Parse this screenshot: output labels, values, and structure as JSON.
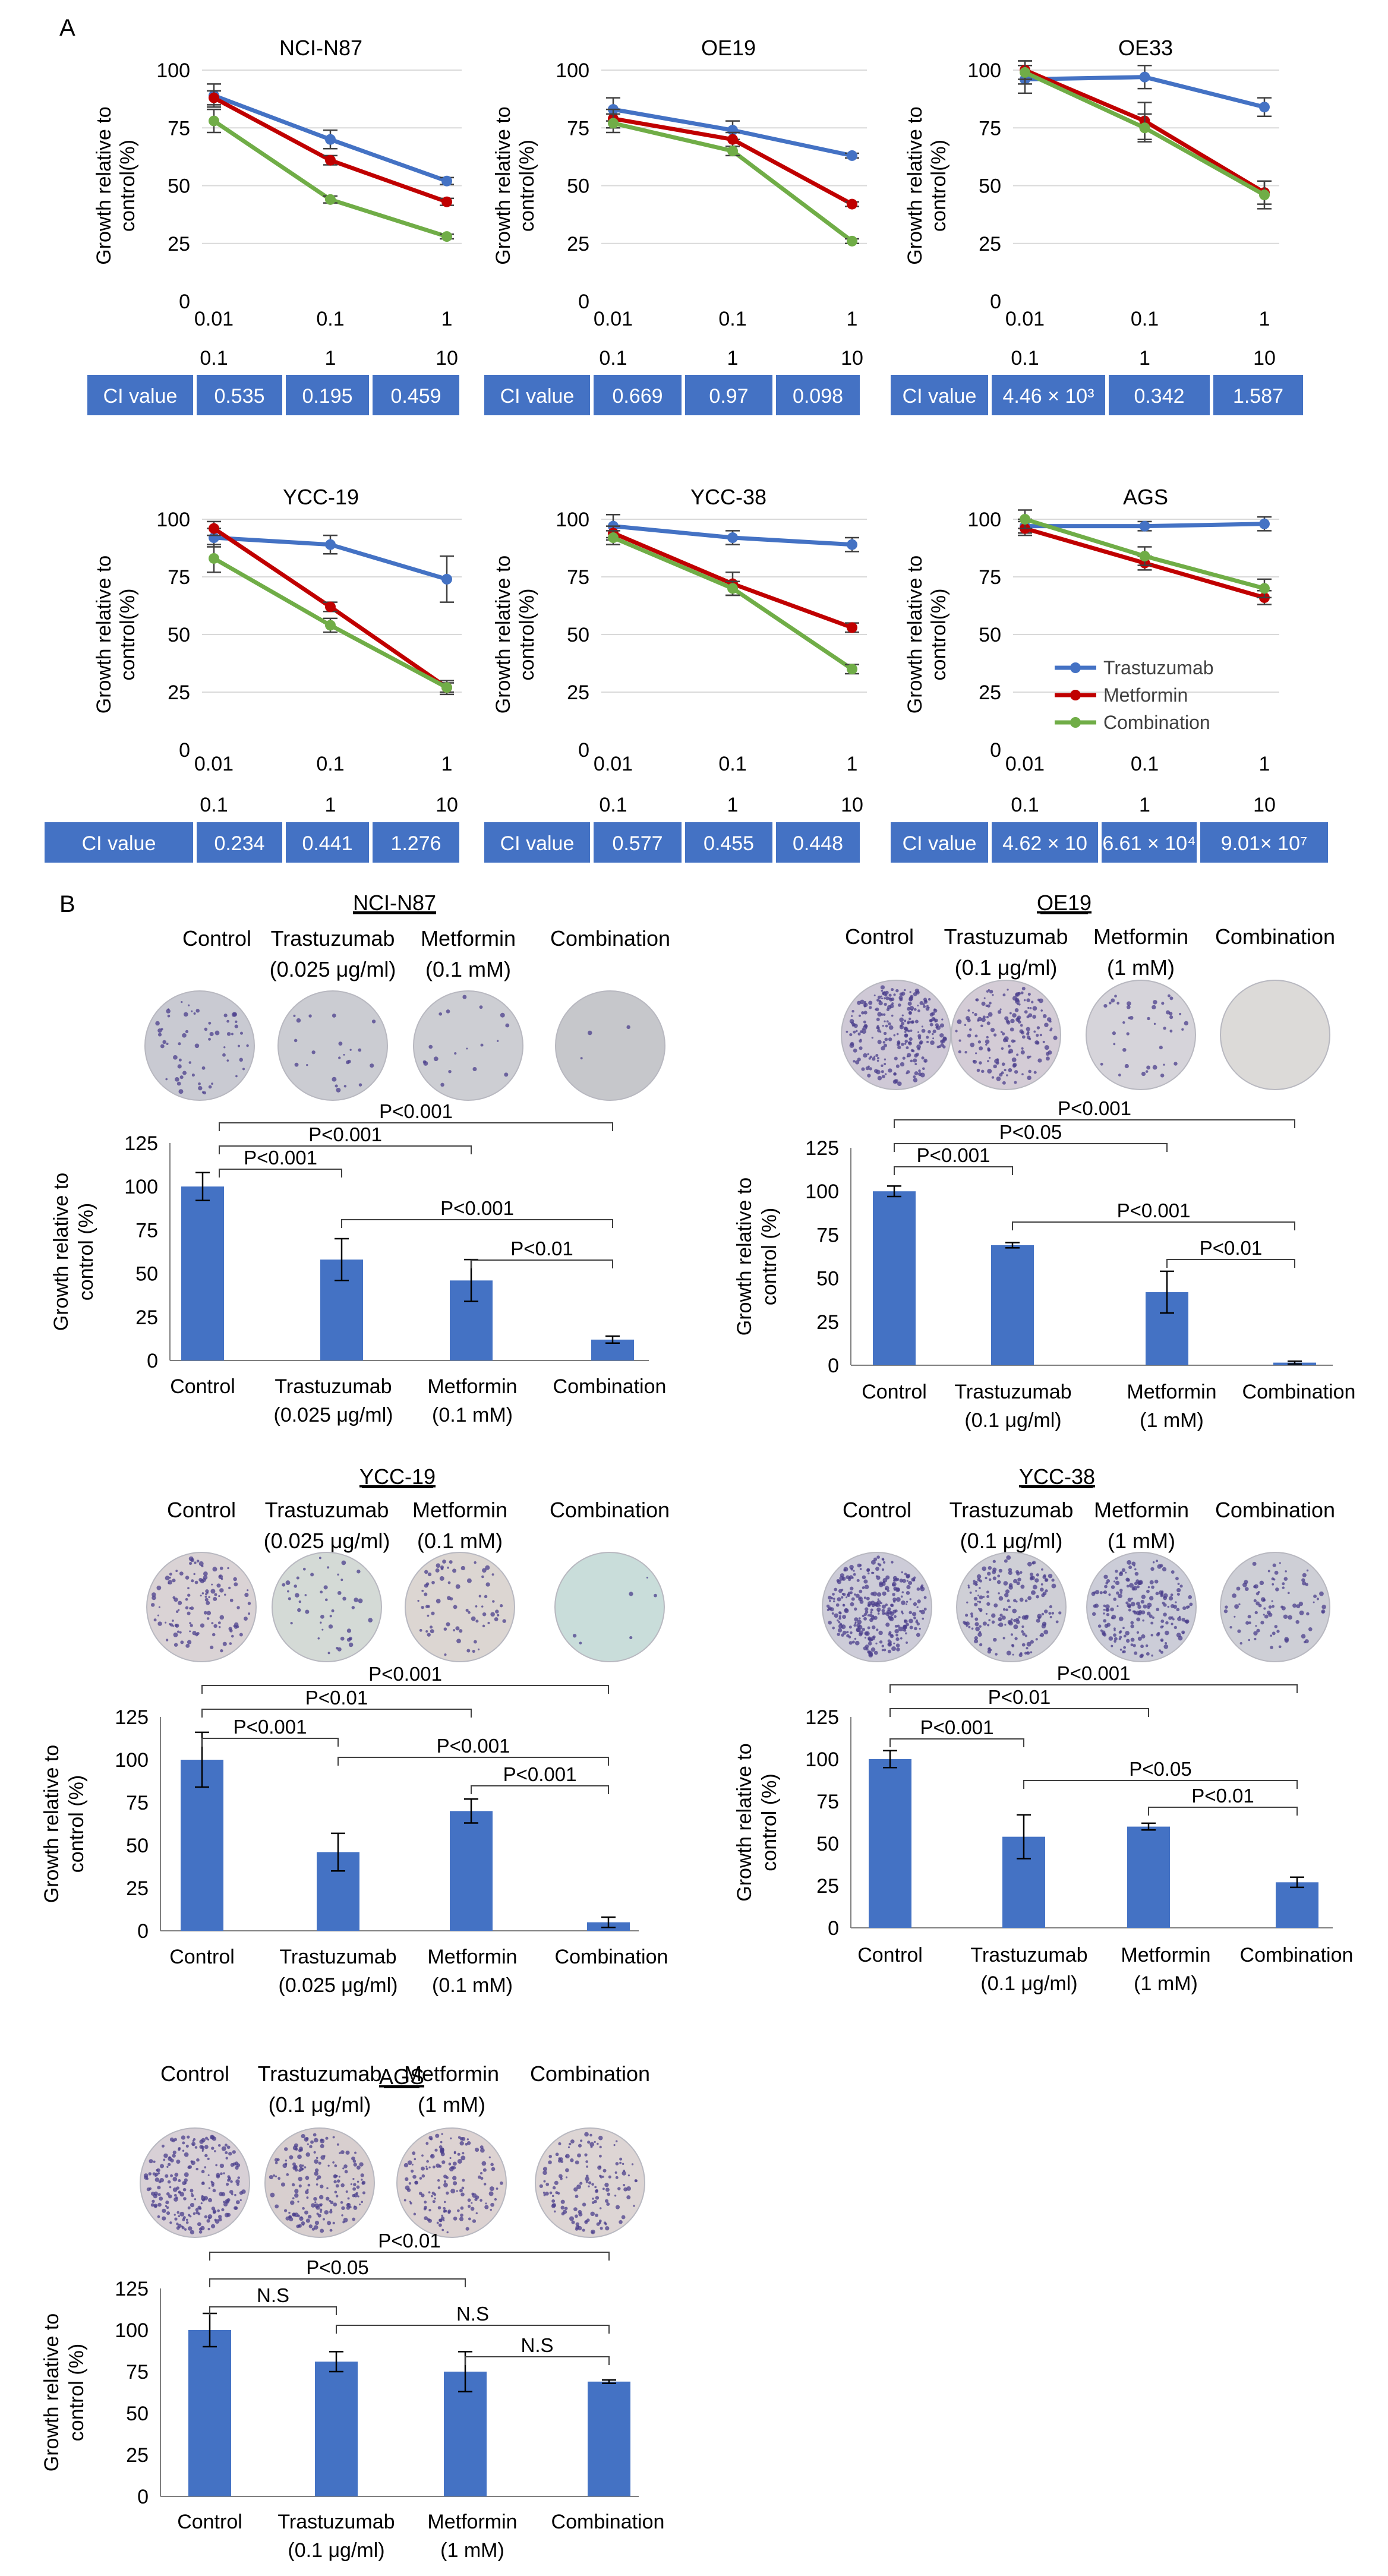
{
  "figure": {
    "panel_a_label": "A",
    "panel_b_label": "B",
    "line_ylabel": [
      "Growth relative to",
      "control(%)"
    ],
    "bar_ylabel": [
      "Growth relative to",
      "control (%)"
    ],
    "x_top": [
      "0.01",
      "0.1",
      "1"
    ],
    "x_bottom": [
      "0.1",
      "1",
      "10"
    ],
    "ci_label": "CI value",
    "series_names": [
      "Trastuzumab",
      "Metformin",
      "Combination"
    ],
    "colors": {
      "trastuzumab": "#4472C4",
      "metformin": "#C00000",
      "combination": "#70AD47",
      "bar": "#4472C4",
      "ci_bg": "#4472C4",
      "grid": "#D9D9D9"
    },
    "colony_top_labels": [
      "Control",
      "Trastuzumab",
      "Metformin",
      "Combination"
    ]
  },
  "chart_data": [
    {
      "type": "line",
      "title": "NCI-N87",
      "ylabel": "Growth relative to control(%)",
      "ylim": [
        0,
        100
      ],
      "categories": [
        "0.01 / 0.1",
        "0.1 / 1",
        "1 / 10"
      ],
      "series": [
        {
          "name": "Trastuzumab",
          "values": [
            89,
            70,
            52
          ],
          "errors": [
            5,
            4,
            1.5
          ]
        },
        {
          "name": "Metformin",
          "values": [
            88,
            61,
            43
          ],
          "errors": [
            3,
            2,
            1.5
          ]
        },
        {
          "name": "Combination",
          "values": [
            78,
            44,
            28
          ],
          "errors": [
            5,
            1.5,
            1
          ]
        }
      ],
      "ci_values": [
        "0.535",
        "0.195",
        "0.459"
      ]
    },
    {
      "type": "line",
      "title": "OE19",
      "ylabel": "Growth relative to control(%)",
      "ylim": [
        0,
        100
      ],
      "categories": [
        "0.01 / 0.1",
        "0.1 / 1",
        "1 / 10"
      ],
      "series": [
        {
          "name": "Trastuzumab",
          "values": [
            83,
            74,
            63
          ],
          "errors": [
            5,
            4,
            1
          ]
        },
        {
          "name": "Metformin",
          "values": [
            79,
            70,
            42
          ],
          "errors": [
            4,
            3,
            1
          ]
        },
        {
          "name": "Combination",
          "values": [
            77,
            65,
            26
          ],
          "errors": [
            4,
            2,
            1
          ]
        }
      ],
      "ci_values": [
        "0.669",
        "0.97",
        "0.098"
      ]
    },
    {
      "type": "line",
      "title": "OE33",
      "ylabel": "Growth relative to control(%)",
      "ylim": [
        0,
        100
      ],
      "categories": [
        "0.01 / 0.1",
        "0.1 / 1",
        "1 / 10"
      ],
      "series": [
        {
          "name": "Trastuzumab",
          "values": [
            96,
            97,
            84
          ],
          "errors": [
            6,
            5,
            4
          ]
        },
        {
          "name": "Metformin",
          "values": [
            100,
            78,
            47
          ],
          "errors": [
            4,
            8,
            5
          ]
        },
        {
          "name": "Combination",
          "values": [
            99,
            75,
            46
          ],
          "errors": [
            5,
            6,
            6
          ]
        }
      ],
      "ci_values": [
        "4.46 × 10³",
        "0.342",
        "1.587"
      ]
    },
    {
      "type": "line",
      "title": "YCC-19",
      "ylabel": "Growth relative to control(%)",
      "ylim": [
        0,
        100
      ],
      "categories": [
        "0.01 / 0.1",
        "0.1 / 1",
        "1 / 10"
      ],
      "series": [
        {
          "name": "Trastuzumab",
          "values": [
            92,
            89,
            74
          ],
          "errors": [
            4,
            4,
            10
          ]
        },
        {
          "name": "Metformin",
          "values": [
            96,
            62,
            27
          ],
          "errors": [
            3,
            2,
            2
          ]
        },
        {
          "name": "Combination",
          "values": [
            83,
            54,
            27
          ],
          "errors": [
            6,
            3,
            3
          ]
        }
      ],
      "ci_values": [
        "0.234",
        "0.441",
        "1.276"
      ]
    },
    {
      "type": "line",
      "title": "YCC-38",
      "ylabel": "Growth relative to control(%)",
      "ylim": [
        0,
        100
      ],
      "categories": [
        "0.01 / 0.1",
        "0.1 / 1",
        "1 / 10"
      ],
      "series": [
        {
          "name": "Trastuzumab",
          "values": [
            97,
            92,
            89
          ],
          "errors": [
            5,
            3,
            3
          ]
        },
        {
          "name": "Metformin",
          "values": [
            94,
            72,
            53
          ],
          "errors": [
            3,
            5,
            2
          ]
        },
        {
          "name": "Combination",
          "values": [
            92,
            70,
            35
          ],
          "errors": [
            3,
            3,
            2
          ]
        }
      ],
      "ci_values": [
        "0.577",
        "0.455",
        "0.448"
      ]
    },
    {
      "type": "line",
      "title": "AGS",
      "ylabel": "Growth relative to control(%)",
      "ylim": [
        0,
        100
      ],
      "categories": [
        "0.01 / 0.1",
        "0.1 / 1",
        "1 / 10"
      ],
      "series": [
        {
          "name": "Trastuzumab",
          "values": [
            97,
            97,
            98
          ],
          "errors": [
            3,
            2,
            3
          ]
        },
        {
          "name": "Metformin",
          "values": [
            96,
            81,
            66
          ],
          "errors": [
            3,
            3,
            3
          ]
        },
        {
          "name": "Combination",
          "values": [
            100,
            84,
            70
          ],
          "errors": [
            4,
            4,
            4
          ]
        }
      ],
      "legend": "inside lower-right",
      "ci_values": [
        "4.62 × 10",
        "6.61 × 10⁴",
        "9.01× 10⁷"
      ]
    },
    {
      "type": "bar",
      "title": "NCI-N87",
      "ylabel": "Growth relative to control (%)",
      "ylim": [
        0,
        125
      ],
      "categories": [
        [
          "Control"
        ],
        [
          "Trastuzumab",
          "(0.025 μg/ml)"
        ],
        [
          "Metformin",
          "(0.1 mM)"
        ],
        [
          "Combination"
        ]
      ],
      "values": [
        100,
        58,
        46,
        12
      ],
      "errors": [
        8,
        12,
        12,
        2
      ],
      "comparisons": [
        {
          "from": 0,
          "to": 3,
          "label": "P<0.001"
        },
        {
          "from": 0,
          "to": 2,
          "label": "P<0.001"
        },
        {
          "from": 0,
          "to": 1,
          "label": "P<0.001"
        },
        {
          "from": 1,
          "to": 3,
          "label": "P<0.001"
        },
        {
          "from": 2,
          "to": 3,
          "label": "P<0.01"
        }
      ]
    },
    {
      "type": "bar",
      "title": "OE19",
      "ylabel": "Growth relative to control (%)",
      "ylim": [
        0,
        125
      ],
      "categories": [
        [
          "Control"
        ],
        [
          "Trastuzumab",
          "(0.1 μg/ml)"
        ],
        [
          "Metformin",
          "(1 mM)"
        ],
        [
          "Combination"
        ]
      ],
      "values": [
        100,
        69,
        42,
        1.5
      ],
      "errors": [
        3,
        1.5,
        12,
        0.8
      ],
      "comparisons": [
        {
          "from": 0,
          "to": 3,
          "label": "P<0.001"
        },
        {
          "from": 0,
          "to": 2,
          "label": "P<0.05"
        },
        {
          "from": 0,
          "to": 1,
          "label": "P<0.001"
        },
        {
          "from": 1,
          "to": 3,
          "label": "P<0.001"
        },
        {
          "from": 2,
          "to": 3,
          "label": "P<0.01"
        }
      ]
    },
    {
      "type": "bar",
      "title": "YCC-19",
      "ylabel": "Growth relative to control (%)",
      "ylim": [
        0,
        125
      ],
      "categories": [
        [
          "Control"
        ],
        [
          "Trastuzumab",
          "(0.025 μg/ml)"
        ],
        [
          "Metformin",
          "(0.1 mM)"
        ],
        [
          "Combination"
        ]
      ],
      "values": [
        100,
        46,
        70,
        5
      ],
      "errors": [
        16,
        11,
        7,
        3
      ],
      "comparisons": [
        {
          "from": 0,
          "to": 3,
          "label": "P<0.001"
        },
        {
          "from": 0,
          "to": 2,
          "label": "P<0.01"
        },
        {
          "from": 0,
          "to": 1,
          "label": "P<0.001"
        },
        {
          "from": 1,
          "to": 3,
          "label": "P<0.001"
        },
        {
          "from": 2,
          "to": 3,
          "label": "P<0.001"
        }
      ]
    },
    {
      "type": "bar",
      "title": "YCC-38",
      "ylabel": "Growth relative to control (%)",
      "ylim": [
        0,
        125
      ],
      "categories": [
        [
          "Control"
        ],
        [
          "Trastuzumab",
          "(0.1 μg/ml)"
        ],
        [
          "Metformin",
          "(1 mM)"
        ],
        [
          "Combination"
        ]
      ],
      "values": [
        100,
        54,
        60,
        27
      ],
      "errors": [
        5,
        13,
        2,
        3
      ],
      "comparisons": [
        {
          "from": 0,
          "to": 3,
          "label": "P<0.001"
        },
        {
          "from": 0,
          "to": 2,
          "label": "P<0.01"
        },
        {
          "from": 0,
          "to": 1,
          "label": "P<0.001"
        },
        {
          "from": 1,
          "to": 3,
          "label": "P<0.05"
        },
        {
          "from": 2,
          "to": 3,
          "label": "P<0.01"
        }
      ]
    },
    {
      "type": "bar",
      "title": "AGS",
      "ylabel": "Growth relative to control (%)",
      "ylim": [
        0,
        125
      ],
      "categories": [
        [
          "Control"
        ],
        [
          "Trastuzumab",
          "(0.1 μg/ml)"
        ],
        [
          "Metformin",
          "(1 mM)"
        ],
        [
          "Combination"
        ]
      ],
      "values": [
        100,
        81,
        75,
        69
      ],
      "errors": [
        10,
        6,
        12,
        1
      ],
      "comparisons": [
        {
          "from": 0,
          "to": 3,
          "label": "P<0.01"
        },
        {
          "from": 0,
          "to": 2,
          "label": "P<0.05"
        },
        {
          "from": 0,
          "to": 1,
          "label": "N.S"
        },
        {
          "from": 1,
          "to": 3,
          "label": "N.S"
        },
        {
          "from": 2,
          "to": 3,
          "label": "N.S"
        }
      ]
    }
  ],
  "colony_panels": [
    {
      "title": "NCI-N87",
      "labels": [
        [
          "Control"
        ],
        [
          "Trastuzumab",
          "(0.025 μg/ml)"
        ],
        [
          "Metformin",
          "(0.1 mM)"
        ],
        [
          "Combination"
        ]
      ],
      "dish_colors": [
        "#C9CAD2",
        "#CBCCD2",
        "#CDCED3",
        "#C6C7CB"
      ],
      "colony_density": [
        60,
        22,
        18,
        3
      ]
    },
    {
      "title": "OE19",
      "labels": [
        [
          "Control"
        ],
        [
          "Trastuzumab",
          "(0.1 μg/ml)"
        ],
        [
          "Metformin",
          "(1 mM)"
        ],
        [
          "Combination"
        ]
      ],
      "dish_colors": [
        "#CFC9D6",
        "#D4CCD6",
        "#D6D4DA",
        "#DCDAD8"
      ],
      "colony_density": [
        260,
        160,
        40,
        0
      ]
    },
    {
      "title": "YCC-19",
      "labels": [
        [
          "Control"
        ],
        [
          "Trastuzumab",
          "(0.025 μg/ml)"
        ],
        [
          "Metformin",
          "(0.1 mM)"
        ],
        [
          "Combination"
        ]
      ],
      "dish_colors": [
        "#DAD3D5",
        "#D4DAD6",
        "#DCD6D2",
        "#C9DDDA"
      ],
      "colony_density": [
        120,
        45,
        70,
        6
      ]
    },
    {
      "title": "YCC-38",
      "labels": [
        [
          "Control"
        ],
        [
          "Trastuzumab",
          "(0.1 μg/ml)"
        ],
        [
          "Metformin",
          "(1 mM)"
        ],
        [
          "Combination"
        ]
      ],
      "dish_colors": [
        "#CDCCD8",
        "#CFCFD6",
        "#CCCDD8",
        "#CECFD6"
      ],
      "colony_density": [
        300,
        180,
        200,
        90
      ]
    },
    {
      "title": "AGS",
      "labels": [
        [
          "Control"
        ],
        [
          "Trastuzumab",
          "(0.1 μg/ml)"
        ],
        [
          "Metformin",
          "(1 mM)"
        ],
        [
          "Combination"
        ]
      ],
      "dish_colors": [
        "#D8D0D6",
        "#D8CFCF",
        "#DDD3D2",
        "#DDD5D4"
      ],
      "colony_density": [
        220,
        180,
        150,
        140
      ]
    }
  ]
}
